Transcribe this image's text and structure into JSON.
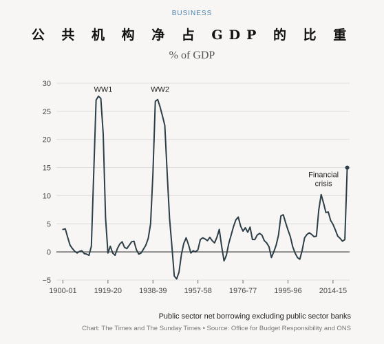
{
  "section_label": "BUSINESS",
  "title": "公 共 机 构 净 占 GDP 的 比 重",
  "subtitle": "% of GDP",
  "footer_note": "Public sector net borrowing excluding public sector banks",
  "footer_credit": "Chart: The Times and The Sunday Times • Source: Office for Budget Responsibility and ONS",
  "colors": {
    "line": "#2c3e47",
    "accent": "#4a7fa8",
    "grid": "#dddddd"
  },
  "chart_data": {
    "type": "line",
    "title": "% of GDP",
    "xlabel": "",
    "ylabel": "",
    "ylim": [
      -5,
      30
    ],
    "xlim": [
      1899,
      2021
    ],
    "grid": true,
    "y_ticks": [
      30,
      25,
      20,
      15,
      10,
      5,
      0,
      -5
    ],
    "y_tick_labels": [
      "30",
      "25",
      "20",
      "15",
      "10",
      "5",
      "0",
      "−5"
    ],
    "x_ticks": [
      1900,
      1919,
      1938,
      1957,
      1976,
      1995,
      2014
    ],
    "x_tick_labels": [
      "1900-01",
      "1919-20",
      "1938-39",
      "1957-58",
      "1976-77",
      "1995-96",
      "2014-15"
    ],
    "annotations": [
      {
        "text": "WW1",
        "x": 1917,
        "y": 28.5
      },
      {
        "text": "WW2",
        "x": 1941,
        "y": 28.5
      },
      {
        "text": "Financial",
        "x": 2010,
        "y": 13.3
      },
      {
        "text": "crisis",
        "x": 2010,
        "y": 11.7
      }
    ],
    "series": [
      {
        "x": [
          1900,
          1901,
          1902,
          1903,
          1904,
          1905,
          1906,
          1907,
          1908,
          1909,
          1910,
          1911,
          1912,
          1913,
          1914,
          1915,
          1916,
          1917,
          1918,
          1919,
          1920,
          1921,
          1922,
          1923,
          1924,
          1925,
          1926,
          1927,
          1928,
          1929,
          1930,
          1931,
          1932,
          1933,
          1934,
          1935,
          1936,
          1937,
          1938,
          1939,
          1940,
          1941,
          1942,
          1943,
          1944,
          1945,
          1946,
          1947,
          1948,
          1949,
          1950,
          1951,
          1952,
          1953,
          1954,
          1955,
          1956,
          1957,
          1958,
          1959,
          1960,
          1961,
          1962,
          1963,
          1964,
          1965,
          1966,
          1967,
          1968,
          1969,
          1970,
          1971,
          1972,
          1973,
          1974,
          1975,
          1976,
          1977,
          1978,
          1979,
          1980,
          1981,
          1982,
          1983,
          1984,
          1985,
          1986,
          1987,
          1988,
          1989,
          1990,
          1991,
          1992,
          1993,
          1994,
          1995,
          1996,
          1997,
          1998,
          1999,
          2000,
          2001,
          2002,
          2003,
          2004,
          2005,
          2006,
          2007,
          2008,
          2009,
          2010,
          2011,
          2012,
          2013,
          2014,
          2015,
          2016,
          2017,
          2018,
          2019,
          2020
        ],
        "y": [
          4.0,
          4.1,
          2.6,
          1.2,
          0.6,
          0.1,
          -0.2,
          0.1,
          0.2,
          -0.3,
          -0.4,
          -0.6,
          1.0,
          14.0,
          27.0,
          27.7,
          27.3,
          21.0,
          6.0,
          -0.2,
          1.0,
          -0.2,
          -0.6,
          0.6,
          1.4,
          1.8,
          0.8,
          0.6,
          1.2,
          1.8,
          1.9,
          0.4,
          -0.4,
          -0.2,
          0.5,
          1.2,
          2.4,
          5.0,
          14.0,
          26.8,
          27.1,
          25.8,
          24.2,
          22.5,
          14.0,
          6.0,
          1.0,
          -4.3,
          -4.8,
          -3.6,
          -0.5,
          1.5,
          2.5,
          1.3,
          -0.2,
          0.2,
          0.0,
          0.4,
          2.2,
          2.5,
          2.3,
          2.0,
          2.6,
          2.0,
          1.6,
          2.6,
          4.0,
          1.0,
          -1.6,
          -0.6,
          1.5,
          3.0,
          4.5,
          5.7,
          6.2,
          4.6,
          3.7,
          4.3,
          3.5,
          4.4,
          2.2,
          2.2,
          3.0,
          3.3,
          3.0,
          2.0,
          1.6,
          0.9,
          -1.0,
          0.0,
          1.2,
          3.0,
          6.4,
          6.6,
          5.2,
          3.9,
          2.7,
          0.9,
          -0.2,
          -1.0,
          -1.3,
          0.3,
          2.5,
          3.1,
          3.4,
          3.1,
          2.7,
          2.8,
          7.5,
          10.2,
          8.7,
          7.0,
          7.1,
          5.6,
          4.9,
          3.9,
          2.8,
          2.4,
          1.9,
          2.2,
          15.0
        ]
      }
    ]
  }
}
